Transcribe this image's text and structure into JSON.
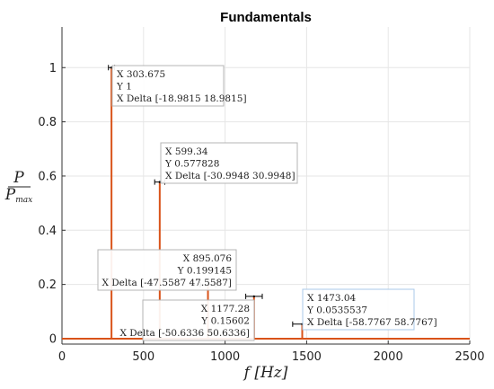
{
  "chart_data": {
    "type": "stem",
    "title": "Fundamentals",
    "xlabel": "f [Hz]",
    "ylabel_num": "P",
    "ylabel_den": "P_max",
    "xlim": [
      0,
      2500
    ],
    "ylim": [
      -0.02,
      1.15
    ],
    "xticks": [
      0,
      500,
      1000,
      1500,
      2000,
      2500
    ],
    "xtick_labels": [
      "0",
      "500",
      "1000",
      "1500",
      "2000",
      "2500"
    ],
    "yticks": [
      0,
      0.2,
      0.4,
      0.6,
      0.8,
      1
    ],
    "ytick_labels": [
      "0",
      "0.2",
      "0.4",
      "0.6",
      "0.8",
      "1"
    ],
    "grid": true,
    "line_color": "#d95319",
    "errorbar_color": "#000000",
    "points": [
      {
        "x": 303.675,
        "y": 1,
        "delta": 18.9815
      },
      {
        "x": 599.34,
        "y": 0.577828,
        "delta": 30.9948
      },
      {
        "x": 895.076,
        "y": 0.199145,
        "delta": 47.5587
      },
      {
        "x": 1177.28,
        "y": 0.15602,
        "delta": 50.6336
      },
      {
        "x": 1473.04,
        "y": 0.0535537,
        "delta": 58.7767
      }
    ],
    "datatips": [
      {
        "lines": [
          "X 303.675",
          "Y 1",
          "X Delta [-18.9815 18.9815]"
        ],
        "align": "left",
        "highlight": false
      },
      {
        "lines": [
          "X 599.34",
          "Y 0.577828",
          "X Delta [-30.9948 30.9948]"
        ],
        "align": "left",
        "highlight": false
      },
      {
        "lines": [
          "X 895.076",
          "Y 0.199145",
          "X Delta [-47.5587 47.5587]"
        ],
        "align": "right",
        "highlight": false
      },
      {
        "lines": [
          "X 1177.28",
          "Y 0.15602",
          "X Delta [-50.6336 50.6336]"
        ],
        "align": "right",
        "highlight": false
      },
      {
        "lines": [
          "X 1473.04",
          "Y 0.0535537",
          "X Delta [-58.7767 58.7767]"
        ],
        "align": "left",
        "highlight": true
      }
    ]
  }
}
